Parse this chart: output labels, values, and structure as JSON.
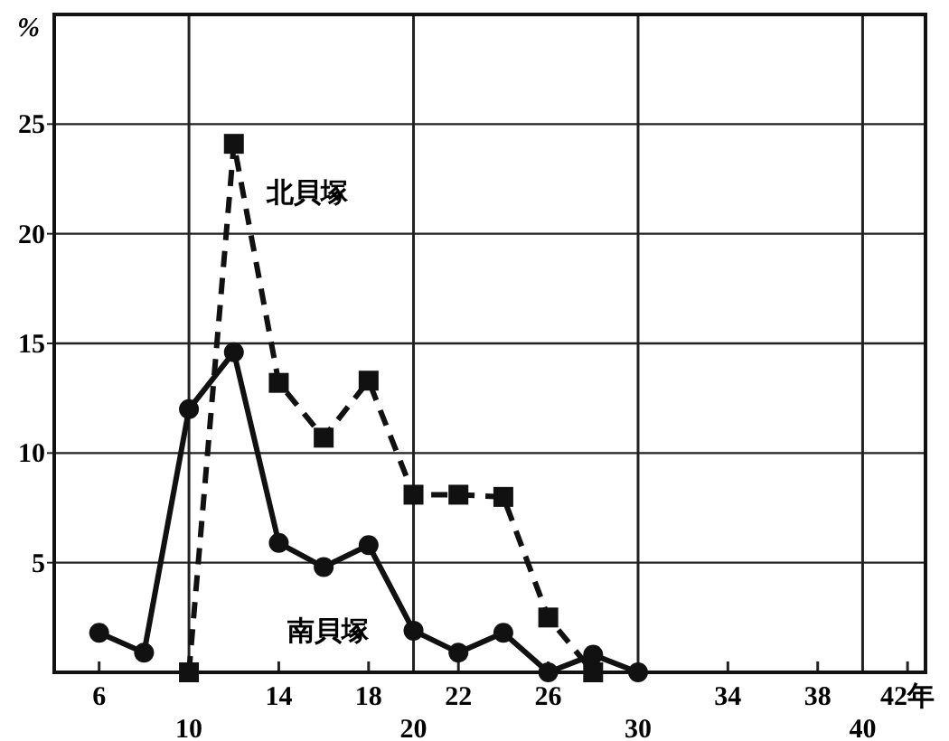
{
  "chart_data": {
    "type": "line",
    "ylabel": "%",
    "xlim": [
      4,
      42.8
    ],
    "ylim": [
      0,
      30
    ],
    "xticks": [
      6,
      14,
      18,
      22,
      26,
      34,
      38,
      {
        "value": 42,
        "label": "42年"
      }
    ],
    "yticks": [
      5,
      10,
      15,
      20,
      25
    ],
    "grid": "y",
    "ref_lines": [
      {
        "axis": "x",
        "value": 10,
        "label": "10"
      },
      {
        "axis": "x",
        "value": 20,
        "label": "20"
      },
      {
        "axis": "x",
        "value": 30,
        "label": "30"
      },
      {
        "axis": "x",
        "value": 40,
        "label": "40"
      }
    ],
    "series": [
      {
        "name": "北貝塚",
        "color": "#111111",
        "line_style": "dashed",
        "marker": "square",
        "x": [
          10,
          12,
          14,
          16,
          18,
          20,
          22,
          24,
          26,
          28
        ],
        "values": [
          0,
          24.1,
          13.2,
          10.7,
          13.3,
          8.1,
          8.1,
          8.0,
          2.5,
          0
        ]
      },
      {
        "name": "南貝塚",
        "color": "#111111",
        "line_style": "solid",
        "marker": "circle",
        "x": [
          6,
          8,
          10,
          12,
          14,
          16,
          18,
          20,
          22,
          24,
          26,
          28,
          30
        ],
        "values": [
          1.8,
          0.9,
          12.0,
          14.6,
          5.9,
          4.8,
          5.8,
          1.9,
          0.9,
          1.8,
          0,
          0.8,
          0
        ]
      }
    ]
  }
}
